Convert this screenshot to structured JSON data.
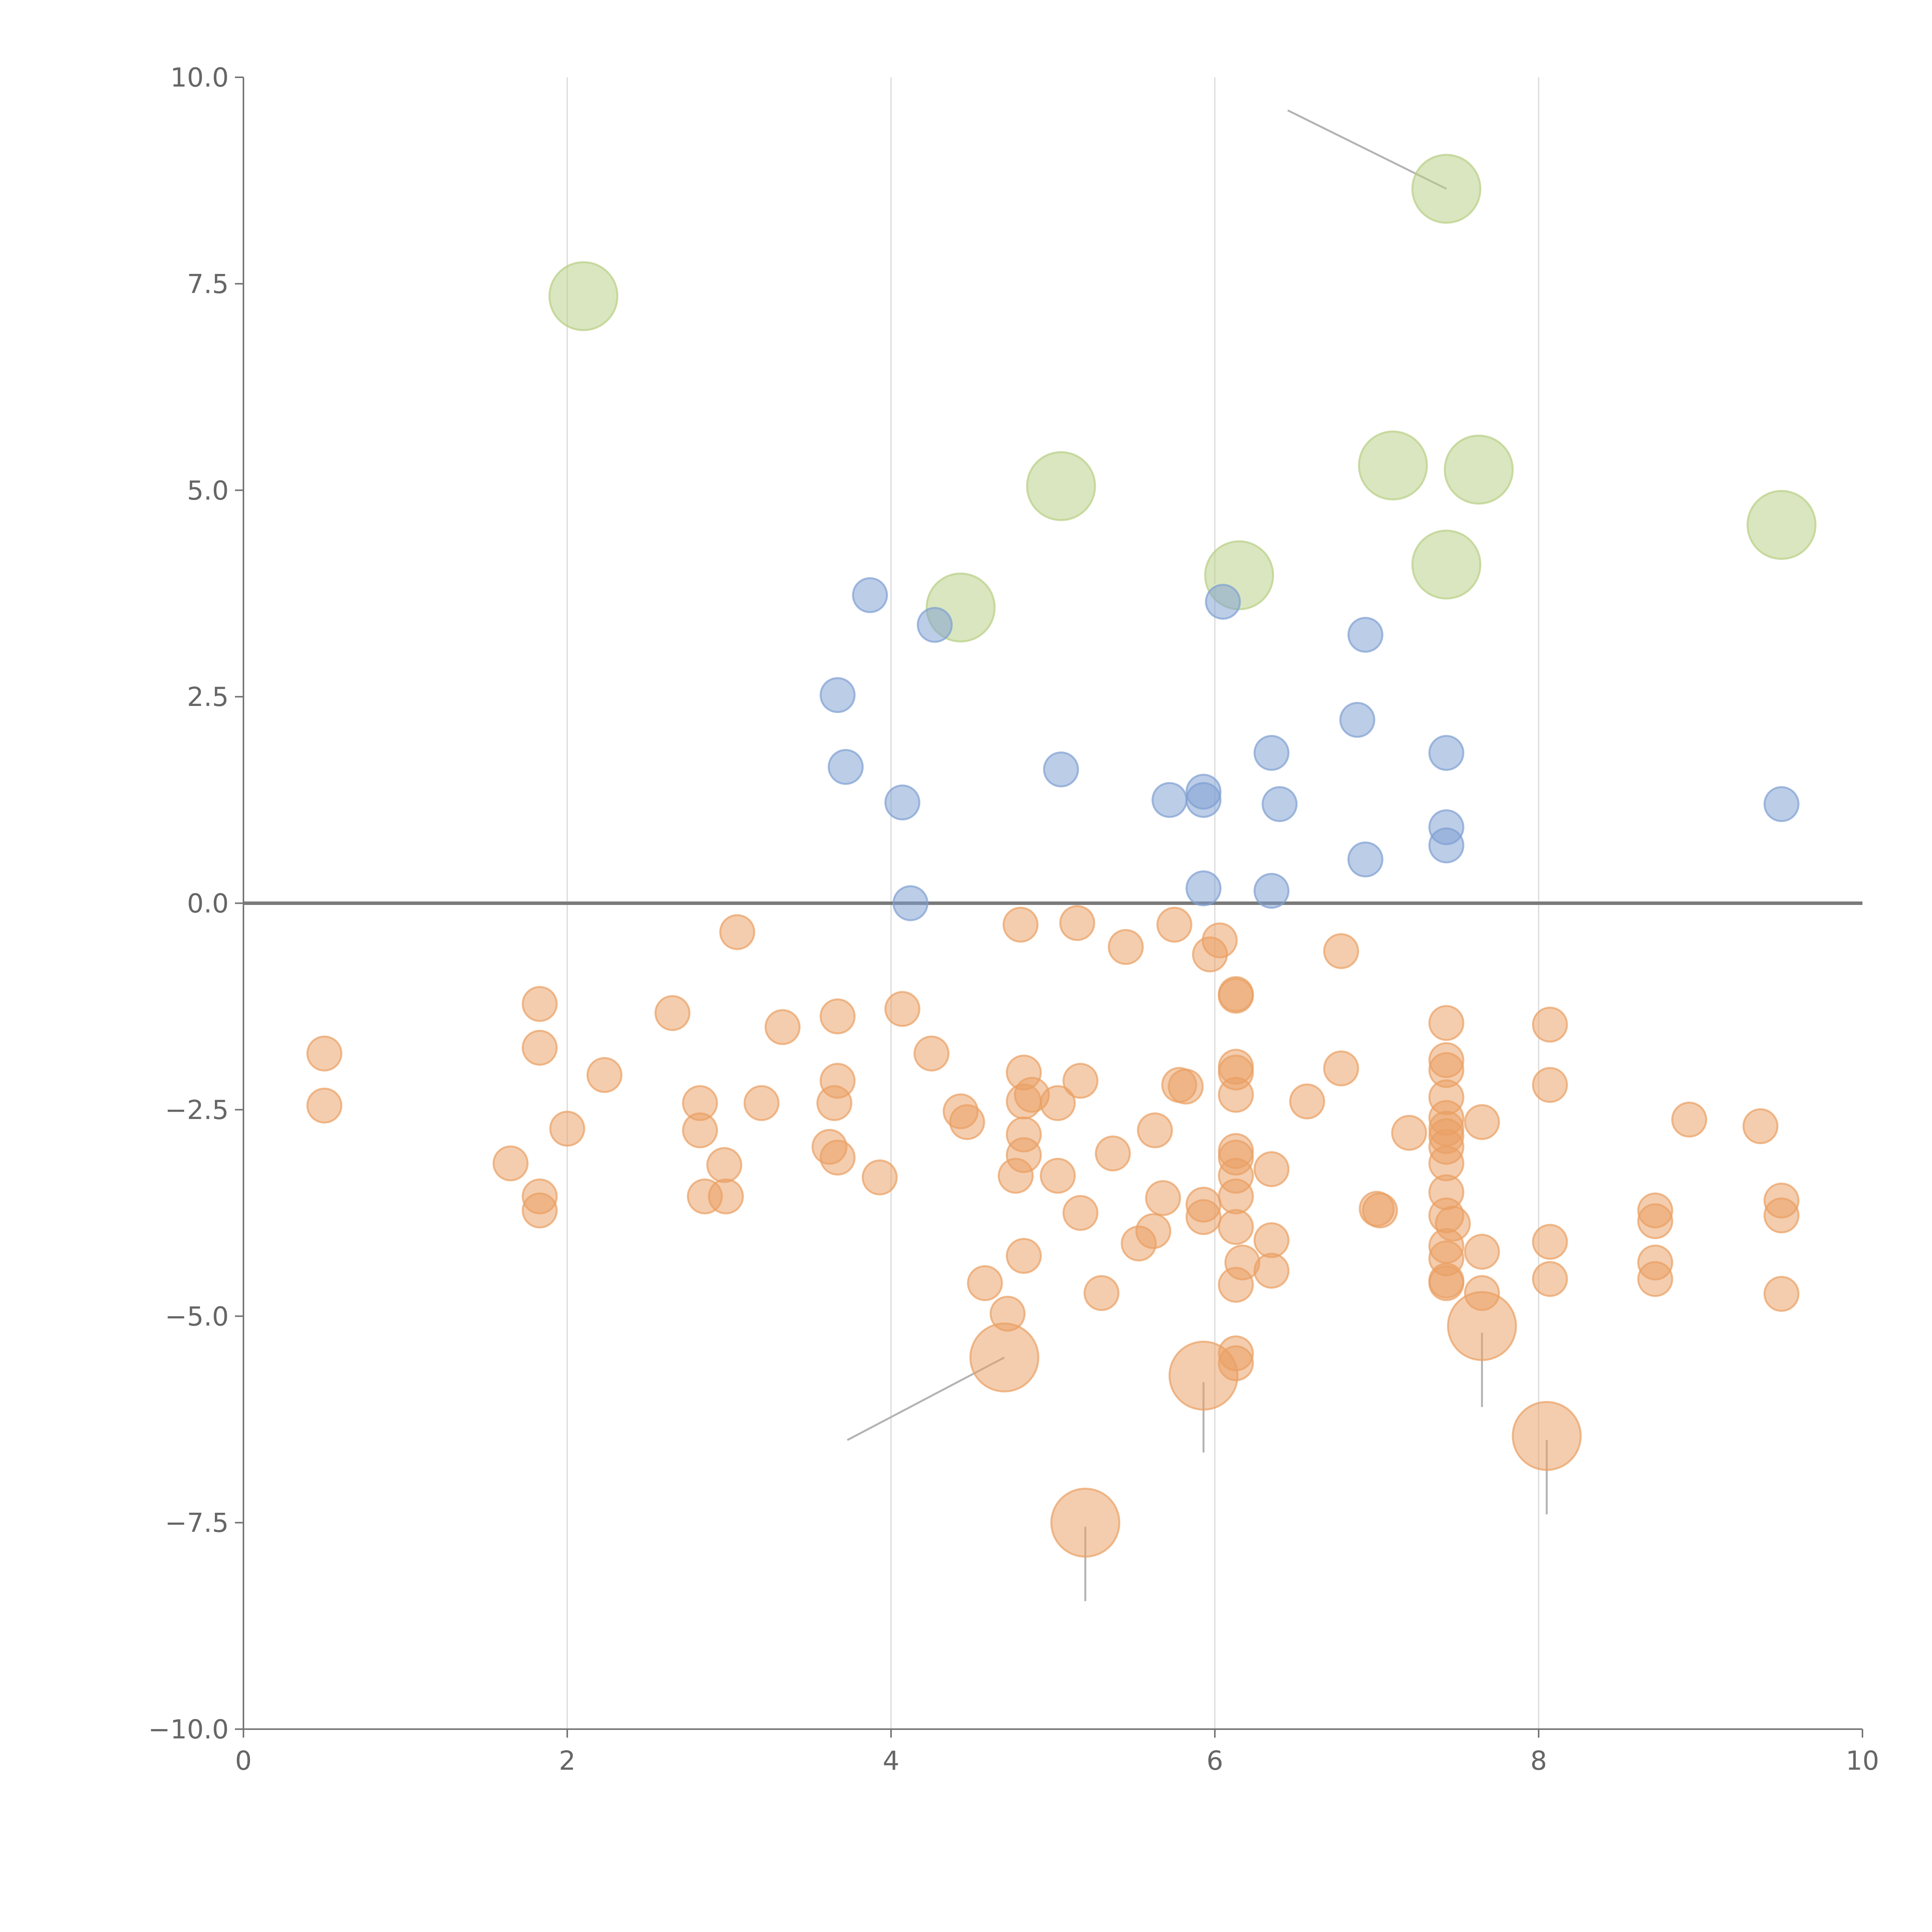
{
  "chart_data": {
    "type": "scatter",
    "title": "",
    "xlabel": "",
    "ylabel": "",
    "xlim": [
      0,
      10
    ],
    "ylim": [
      -10,
      10
    ],
    "grid": "vertical",
    "x_ticks": [
      "0",
      "2",
      "4",
      "6",
      "8",
      "10"
    ],
    "y_ticks": [
      "10.0",
      "7.5",
      "5.0",
      "2.5",
      "0.0",
      "−2.5",
      "−5.0",
      "−7.5",
      "−10.0"
    ],
    "colors": {
      "green": "#b8cf85",
      "blue": "#7f9fd2",
      "orange": "#e99f63"
    },
    "series": [
      {
        "name": "green",
        "size": "large",
        "points": [
          [
            2.1,
            7.35
          ],
          [
            7.43,
            8.65
          ],
          [
            5.05,
            5.05
          ],
          [
            7.1,
            5.3
          ],
          [
            7.63,
            5.25
          ],
          [
            9.5,
            4.58
          ],
          [
            6.15,
            3.97
          ],
          [
            7.43,
            4.1
          ],
          [
            4.43,
            3.58
          ]
        ]
      },
      {
        "name": "blue",
        "size": "medium",
        "points": [
          [
            3.87,
            3.73
          ],
          [
            4.27,
            3.37
          ],
          [
            6.05,
            3.65
          ],
          [
            6.93,
            3.25
          ],
          [
            3.67,
            2.52
          ],
          [
            6.88,
            2.22
          ],
          [
            6.35,
            1.82
          ],
          [
            7.43,
            1.82
          ],
          [
            3.72,
            1.65
          ],
          [
            4.07,
            1.22
          ],
          [
            5.05,
            1.62
          ],
          [
            5.72,
            1.25
          ],
          [
            5.93,
            1.35
          ],
          [
            5.93,
            1.25
          ],
          [
            6.4,
            1.2
          ],
          [
            9.5,
            1.2
          ],
          [
            7.43,
            0.92
          ],
          [
            7.43,
            0.7
          ],
          [
            6.93,
            0.53
          ],
          [
            5.93,
            0.18
          ],
          [
            6.35,
            0.15
          ],
          [
            4.12,
            0.0
          ]
        ]
      },
      {
        "name": "orange",
        "size": "medium",
        "points": [
          [
            3.05,
            -0.35
          ],
          [
            4.8,
            -0.26
          ],
          [
            5.15,
            -0.24
          ],
          [
            5.45,
            -0.53
          ],
          [
            5.75,
            -0.26
          ],
          [
            6.03,
            -0.45
          ],
          [
            5.97,
            -0.62
          ],
          [
            6.78,
            -0.58
          ],
          [
            6.13,
            -1.1
          ],
          [
            6.13,
            -1.12
          ],
          [
            1.83,
            -1.22
          ],
          [
            2.65,
            -1.33
          ],
          [
            3.67,
            -1.37
          ],
          [
            4.07,
            -1.28
          ],
          [
            3.33,
            -1.5
          ],
          [
            7.43,
            -1.45
          ],
          [
            8.07,
            -1.47
          ],
          [
            0.5,
            -1.82
          ],
          [
            1.83,
            -1.75
          ],
          [
            4.25,
            -1.82
          ],
          [
            2.23,
            -2.08
          ],
          [
            3.67,
            -2.15
          ],
          [
            4.82,
            -2.05
          ],
          [
            5.17,
            -2.15
          ],
          [
            5.78,
            -2.2
          ],
          [
            5.82,
            -2.22
          ],
          [
            6.13,
            -1.98
          ],
          [
            6.13,
            -2.05
          ],
          [
            6.78,
            -2.0
          ],
          [
            7.43,
            -1.9
          ],
          [
            7.43,
            -2.02
          ],
          [
            8.07,
            -2.2
          ],
          [
            0.5,
            -2.45
          ],
          [
            2.82,
            -2.42
          ],
          [
            3.2,
            -2.42
          ],
          [
            3.65,
            -2.42
          ],
          [
            4.87,
            -2.32
          ],
          [
            4.82,
            -2.4
          ],
          [
            5.03,
            -2.42
          ],
          [
            6.13,
            -2.32
          ],
          [
            6.57,
            -2.4
          ],
          [
            7.43,
            -2.35
          ],
          [
            4.43,
            -2.52
          ],
          [
            4.47,
            -2.65
          ],
          [
            2.0,
            -2.73
          ],
          [
            2.82,
            -2.75
          ],
          [
            5.63,
            -2.75
          ],
          [
            7.2,
            -2.78
          ],
          [
            7.43,
            -2.6
          ],
          [
            7.43,
            -2.73
          ],
          [
            7.43,
            -2.82
          ],
          [
            7.65,
            -2.65
          ],
          [
            8.93,
            -2.62
          ],
          [
            9.37,
            -2.7
          ],
          [
            3.62,
            -2.95
          ],
          [
            3.67,
            -3.08
          ],
          [
            4.82,
            -2.8
          ],
          [
            4.82,
            -3.05
          ],
          [
            5.37,
            -3.03
          ],
          [
            6.13,
            -3.0
          ],
          [
            6.13,
            -3.08
          ],
          [
            7.43,
            -2.95
          ],
          [
            7.43,
            -3.15
          ],
          [
            1.65,
            -3.15
          ],
          [
            2.97,
            -3.17
          ],
          [
            3.93,
            -3.32
          ],
          [
            4.77,
            -3.3
          ],
          [
            5.03,
            -3.3
          ],
          [
            6.13,
            -3.3
          ],
          [
            6.35,
            -3.22
          ],
          [
            1.83,
            -3.55
          ],
          [
            1.83,
            -3.72
          ],
          [
            2.85,
            -3.55
          ],
          [
            2.98,
            -3.55
          ],
          [
            5.68,
            -3.57
          ],
          [
            5.93,
            -3.65
          ],
          [
            5.93,
            -3.8
          ],
          [
            6.13,
            -3.55
          ],
          [
            7.0,
            -3.7
          ],
          [
            7.02,
            -3.72
          ],
          [
            7.43,
            -3.5
          ],
          [
            7.43,
            -3.78
          ],
          [
            7.47,
            -3.88
          ],
          [
            8.72,
            -3.72
          ],
          [
            8.72,
            -3.85
          ],
          [
            9.5,
            -3.6
          ],
          [
            9.5,
            -3.78
          ],
          [
            5.17,
            -3.75
          ],
          [
            5.62,
            -3.97
          ],
          [
            5.53,
            -4.12
          ],
          [
            6.13,
            -3.92
          ],
          [
            6.35,
            -4.08
          ],
          [
            7.43,
            -4.15
          ],
          [
            7.43,
            -4.3
          ],
          [
            7.65,
            -4.22
          ],
          [
            8.07,
            -4.1
          ],
          [
            4.82,
            -4.27
          ],
          [
            6.17,
            -4.35
          ],
          [
            6.35,
            -4.45
          ],
          [
            7.43,
            -4.57
          ],
          [
            7.43,
            -4.6
          ],
          [
            8.07,
            -4.55
          ],
          [
            8.72,
            -4.35
          ],
          [
            8.72,
            -4.55
          ],
          [
            4.58,
            -4.6
          ],
          [
            5.3,
            -4.72
          ],
          [
            6.13,
            -4.62
          ],
          [
            7.65,
            -4.72
          ],
          [
            9.5,
            -4.73
          ],
          [
            4.72,
            -4.97
          ],
          [
            6.13,
            -5.45
          ],
          [
            6.13,
            -5.57
          ]
        ]
      },
      {
        "name": "orange-large",
        "size": "large",
        "points": [
          [
            4.7,
            -5.5
          ],
          [
            5.93,
            -5.72
          ],
          [
            7.65,
            -5.12
          ],
          [
            8.05,
            -6.45
          ],
          [
            5.2,
            -7.5
          ]
        ]
      }
    ],
    "annotations": [
      {
        "from": [
          7.43,
          8.65
        ],
        "to": [
          6.45,
          9.6
        ],
        "style": "gray"
      },
      {
        "from": [
          4.7,
          -5.5
        ],
        "to": [
          3.73,
          -6.5
        ],
        "style": "gray"
      },
      {
        "from": [
          5.93,
          -5.8
        ],
        "to": [
          5.93,
          -6.65
        ],
        "style": "gray"
      },
      {
        "from": [
          7.65,
          -5.2
        ],
        "to": [
          7.65,
          -6.1
        ],
        "style": "gray"
      },
      {
        "from": [
          8.05,
          -6.5
        ],
        "to": [
          8.05,
          -7.4
        ],
        "style": "gray"
      },
      {
        "from": [
          5.2,
          -7.55
        ],
        "to": [
          5.2,
          -8.45
        ],
        "style": "gray"
      },
      {
        "from": [
          5.05,
          5.1
        ],
        "to": [
          5.22,
          5.35
        ],
        "style": "light"
      },
      {
        "from": [
          7.12,
          5.2
        ],
        "to": [
          7.3,
          5.3
        ],
        "style": "light"
      },
      {
        "from": [
          7.63,
          5.3
        ],
        "to": [
          7.6,
          5.6
        ],
        "style": "light"
      },
      {
        "from": [
          9.5,
          4.6
        ],
        "to": [
          9.35,
          4.8
        ],
        "style": "light"
      },
      {
        "from": [
          6.1,
          3.95
        ],
        "to": [
          5.95,
          3.8
        ],
        "style": "light"
      },
      {
        "from": [
          4.4,
          3.55
        ],
        "to": [
          4.25,
          3.3
        ],
        "style": "light"
      },
      {
        "from": [
          3.72,
          1.65
        ],
        "to": [
          3.6,
          1.45
        ],
        "style": "light"
      }
    ]
  }
}
